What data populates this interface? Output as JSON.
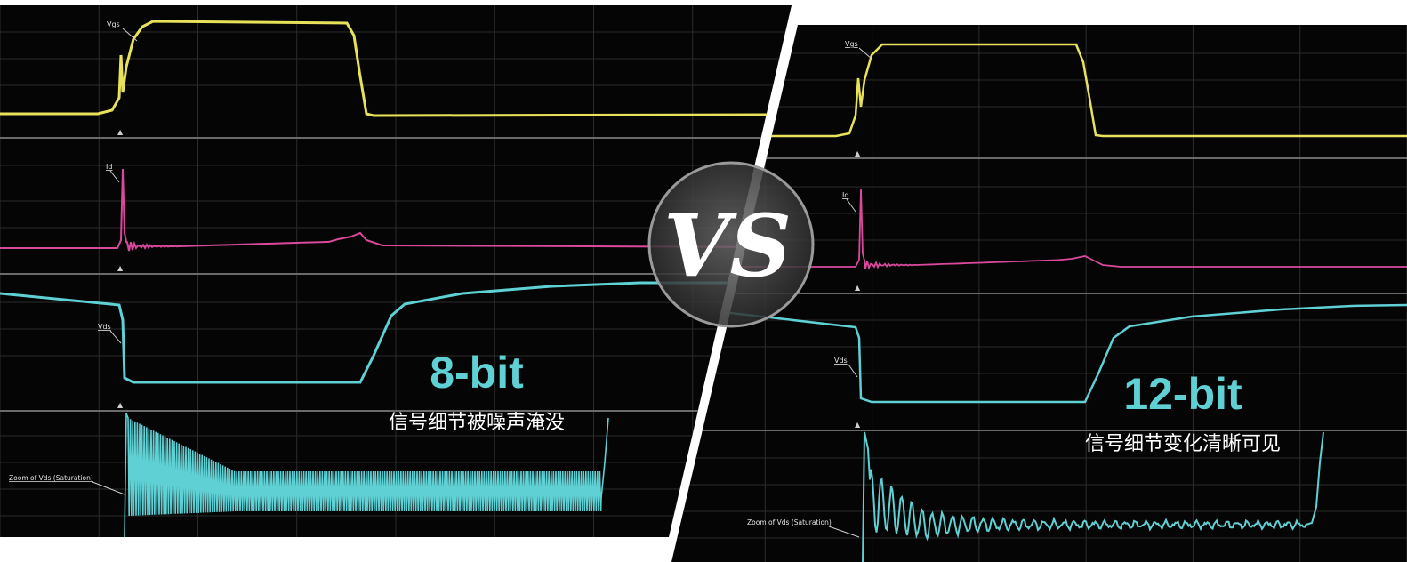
{
  "colors": {
    "background": "#ffffff",
    "screen": "#050505",
    "grid": "#303030",
    "vgs_trace": "#e8e25a",
    "id_trace": "#d94a9c",
    "vds_trace": "#5fd0d4",
    "accent_text": "#5fd0d4",
    "caption_text": "#ffffff"
  },
  "vs_badge": {
    "text": "VS"
  },
  "left_panel": {
    "bit_label": "8-bit",
    "caption": "信号细节被噪声淹没",
    "trace_labels": {
      "vgs": "Vgs",
      "id": "Id",
      "vds": "Vds",
      "zoom": "Zoom of Vds (Saturation)"
    },
    "marker_glyph": "▲"
  },
  "right_panel": {
    "bit_label": "12-bit",
    "caption": "信号细节变化清晰可见",
    "trace_labels": {
      "vgs": "Vgs",
      "id": "Id",
      "vds": "Vds",
      "zoom": "Zoom of Vds (Saturation)"
    },
    "marker_glyph": "▲"
  }
}
